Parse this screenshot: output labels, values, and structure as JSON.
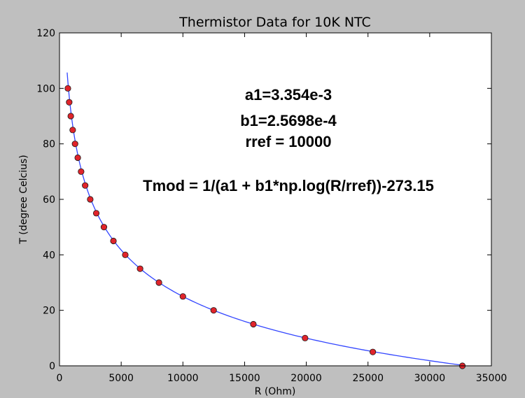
{
  "chart_data": {
    "type": "scatter",
    "title": "Thermistor Data for 10K NTC",
    "xlabel": "R (Ohm)",
    "ylabel": "T (degree Celcius)",
    "xlim": [
      0,
      35000
    ],
    "ylim": [
      0,
      120
    ],
    "xticks": [
      0,
      5000,
      10000,
      15000,
      20000,
      25000,
      30000,
      35000
    ],
    "yticks": [
      0,
      20,
      40,
      60,
      80,
      100,
      120
    ],
    "grid": false,
    "series": [
      {
        "kind": "points",
        "color": "#e0242b",
        "x": [
          32650,
          25390,
          19900,
          15710,
          12490,
          10000,
          8060,
          6530,
          5330,
          4370,
          3600,
          2980,
          2490,
          2080,
          1750,
          1480,
          1260,
          1070,
          915,
          786,
          677
        ],
        "y": [
          0,
          5,
          10,
          15,
          20,
          25,
          30,
          35,
          40,
          45,
          50,
          55,
          60,
          65,
          70,
          75,
          80,
          85,
          90,
          95,
          100
        ]
      },
      {
        "kind": "line",
        "color": "#3346ff",
        "model": {
          "a1": 0.003354,
          "b1": 0.00025698,
          "rref": 10000
        },
        "x_range": [
          620,
          32650
        ]
      }
    ],
    "annotations": [
      "a1=3.354e-3",
      "b1=2.5698e-4",
      "rref = 10000",
      "Tmod = 1/(a1 + b1*np.log(R/rref))-273.15"
    ]
  }
}
